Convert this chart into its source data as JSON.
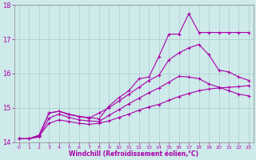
{
  "xlabel": "Windchill (Refroidissement éolien,°C)",
  "bg_color": "#ceeaea",
  "line_color": "#aa00aa",
  "grid_color": "#aacccc",
  "axis_color": "#888888",
  "xlim": [
    -0.5,
    23.5
  ],
  "ylim": [
    14.0,
    18.0
  ],
  "yticks": [
    14,
    15,
    16,
    17,
    18
  ],
  "xticks": [
    0,
    1,
    2,
    3,
    4,
    5,
    6,
    7,
    8,
    9,
    10,
    11,
    12,
    13,
    14,
    15,
    16,
    17,
    18,
    19,
    20,
    21,
    22,
    23
  ],
  "series": [
    [
      14.1,
      14.1,
      14.2,
      14.85,
      14.9,
      14.8,
      14.75,
      14.72,
      14.68,
      15.05,
      15.3,
      15.5,
      15.85,
      15.9,
      16.5,
      17.15,
      17.15,
      17.75,
      17.2,
      17.2,
      17.2,
      17.2,
      17.2,
      17.2
    ],
    [
      14.1,
      14.1,
      14.2,
      14.85,
      14.9,
      14.82,
      14.75,
      14.7,
      14.85,
      15.0,
      15.2,
      15.4,
      15.6,
      15.8,
      15.95,
      16.4,
      16.6,
      16.75,
      16.85,
      16.55,
      16.1,
      16.05,
      15.9,
      15.8
    ],
    [
      14.1,
      14.1,
      14.15,
      14.7,
      14.82,
      14.72,
      14.65,
      14.62,
      14.6,
      14.78,
      14.95,
      15.12,
      15.28,
      15.44,
      15.58,
      15.75,
      15.92,
      15.9,
      15.85,
      15.7,
      15.6,
      15.5,
      15.4,
      15.35
    ],
    [
      14.1,
      14.1,
      14.18,
      14.55,
      14.65,
      14.6,
      14.55,
      14.52,
      14.55,
      14.62,
      14.72,
      14.82,
      14.93,
      15.03,
      15.1,
      15.22,
      15.33,
      15.42,
      15.5,
      15.55,
      15.58,
      15.6,
      15.62,
      15.65
    ]
  ]
}
